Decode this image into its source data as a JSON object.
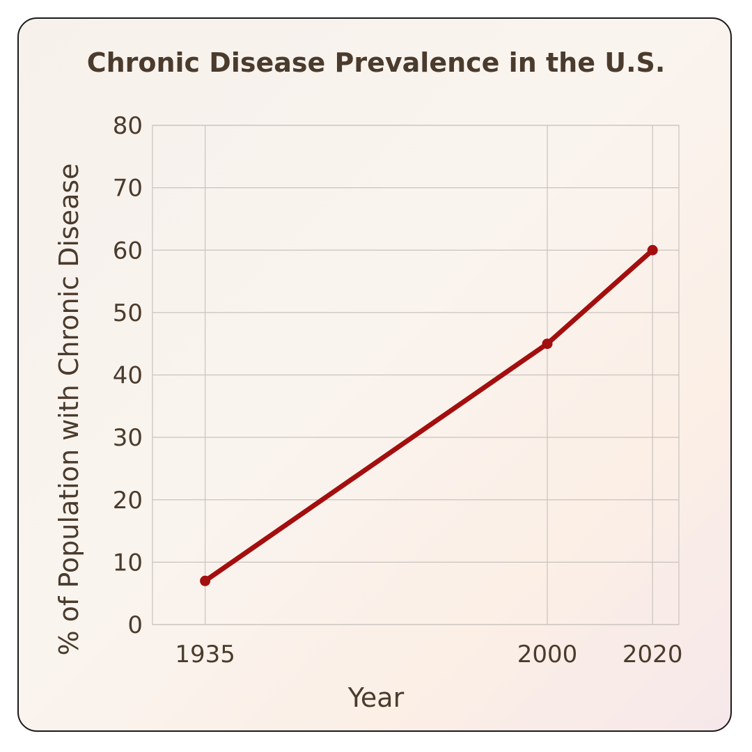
{
  "chart_data": {
    "type": "line",
    "title": "Chronic Disease Prevalence in the U.S.",
    "xlabel": "Year",
    "ylabel": "% of Population with Chronic Disease",
    "x": [
      1935,
      2000,
      2020
    ],
    "x_ticks": [
      "1935",
      "2000",
      "2020"
    ],
    "y_ticks": [
      "0",
      "10",
      "20",
      "30",
      "40",
      "50",
      "60",
      "70",
      "80"
    ],
    "ylim": [
      0,
      80
    ],
    "series": [
      {
        "values": [
          7,
          45,
          60
        ]
      }
    ],
    "grid": true,
    "colors": {
      "line": "#a30e0e",
      "grid": "#c9c2bd",
      "text": "#4a3b2c"
    }
  }
}
